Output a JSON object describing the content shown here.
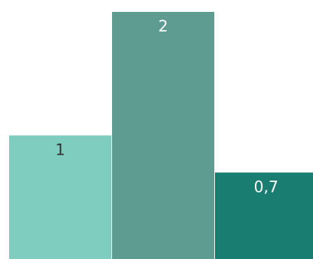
{
  "chart_data": {
    "type": "bar",
    "categories": [
      "",
      "",
      ""
    ],
    "values": [
      1,
      2,
      0.7
    ],
    "value_labels": [
      "1",
      "2",
      "0,7"
    ],
    "ylim": [
      0,
      2
    ],
    "grid": false,
    "colors": [
      "#7ecdbf",
      "#5e9c91",
      "#1a7d72"
    ],
    "label_colors": [
      "#333333",
      "#ffffff",
      "#ffffff"
    ]
  }
}
